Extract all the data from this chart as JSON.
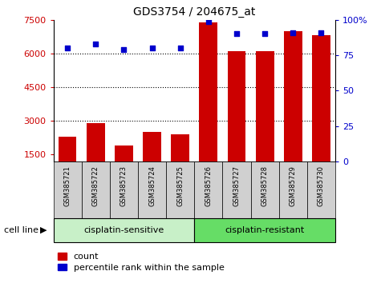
{
  "title": "GDS3754 / 204675_at",
  "samples": [
    "GSM385721",
    "GSM385722",
    "GSM385723",
    "GSM385724",
    "GSM385725",
    "GSM385726",
    "GSM385727",
    "GSM385728",
    "GSM385729",
    "GSM385730"
  ],
  "counts": [
    2300,
    2900,
    1900,
    2500,
    2400,
    7400,
    6100,
    6100,
    7000,
    6800
  ],
  "percentiles": [
    80,
    83,
    79,
    80,
    80,
    99,
    90,
    90,
    91,
    91
  ],
  "ylim_left": [
    1200,
    7500
  ],
  "ylim_right": [
    0,
    100
  ],
  "yticks_left": [
    1500,
    3000,
    4500,
    6000,
    7500
  ],
  "yticks_right": [
    0,
    25,
    50,
    75,
    100
  ],
  "bar_color": "#cc0000",
  "dot_color": "#0000cc",
  "group_color_sensitive": "#c8f0c8",
  "group_color_resistant": "#66dd66",
  "sample_bg_color": "#d0d0d0",
  "legend_items": [
    "count",
    "percentile rank within the sample"
  ],
  "n_sensitive": 5,
  "n_resistant": 5
}
